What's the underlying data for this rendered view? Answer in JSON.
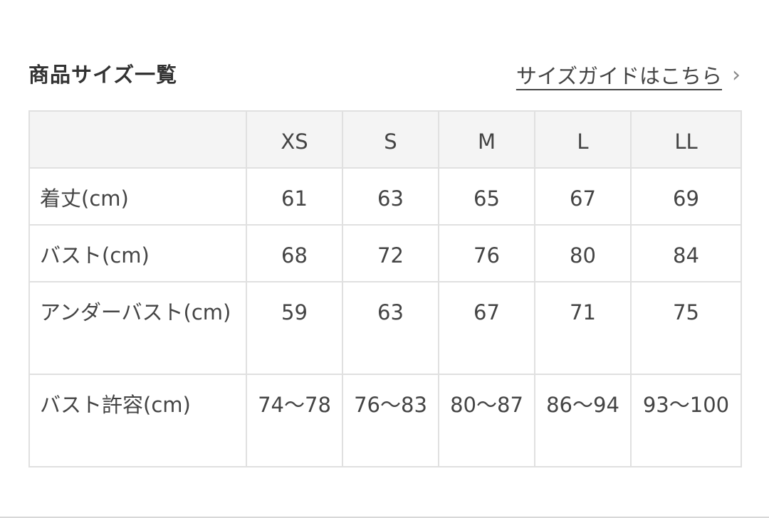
{
  "header": {
    "title": "商品サイズ一覧",
    "guide_link": "サイズガイドはこちら",
    "guide_icon": "chevron-right-icon"
  },
  "table": {
    "columns": [
      "",
      "XS",
      "S",
      "M",
      "L",
      "LL"
    ],
    "rows": [
      {
        "label": "着丈(cm)",
        "values": [
          "61",
          "63",
          "65",
          "67",
          "69"
        ]
      },
      {
        "label": "バスト(cm)",
        "values": [
          "68",
          "72",
          "76",
          "80",
          "84"
        ]
      },
      {
        "label": "アンダーバスト(cm)",
        "values": [
          "59",
          "63",
          "67",
          "71",
          "75"
        ]
      },
      {
        "label": "バスト許容(cm)",
        "values": [
          "74〜78",
          "76〜83",
          "80〜87",
          "86〜94",
          "93〜100"
        ]
      }
    ]
  }
}
